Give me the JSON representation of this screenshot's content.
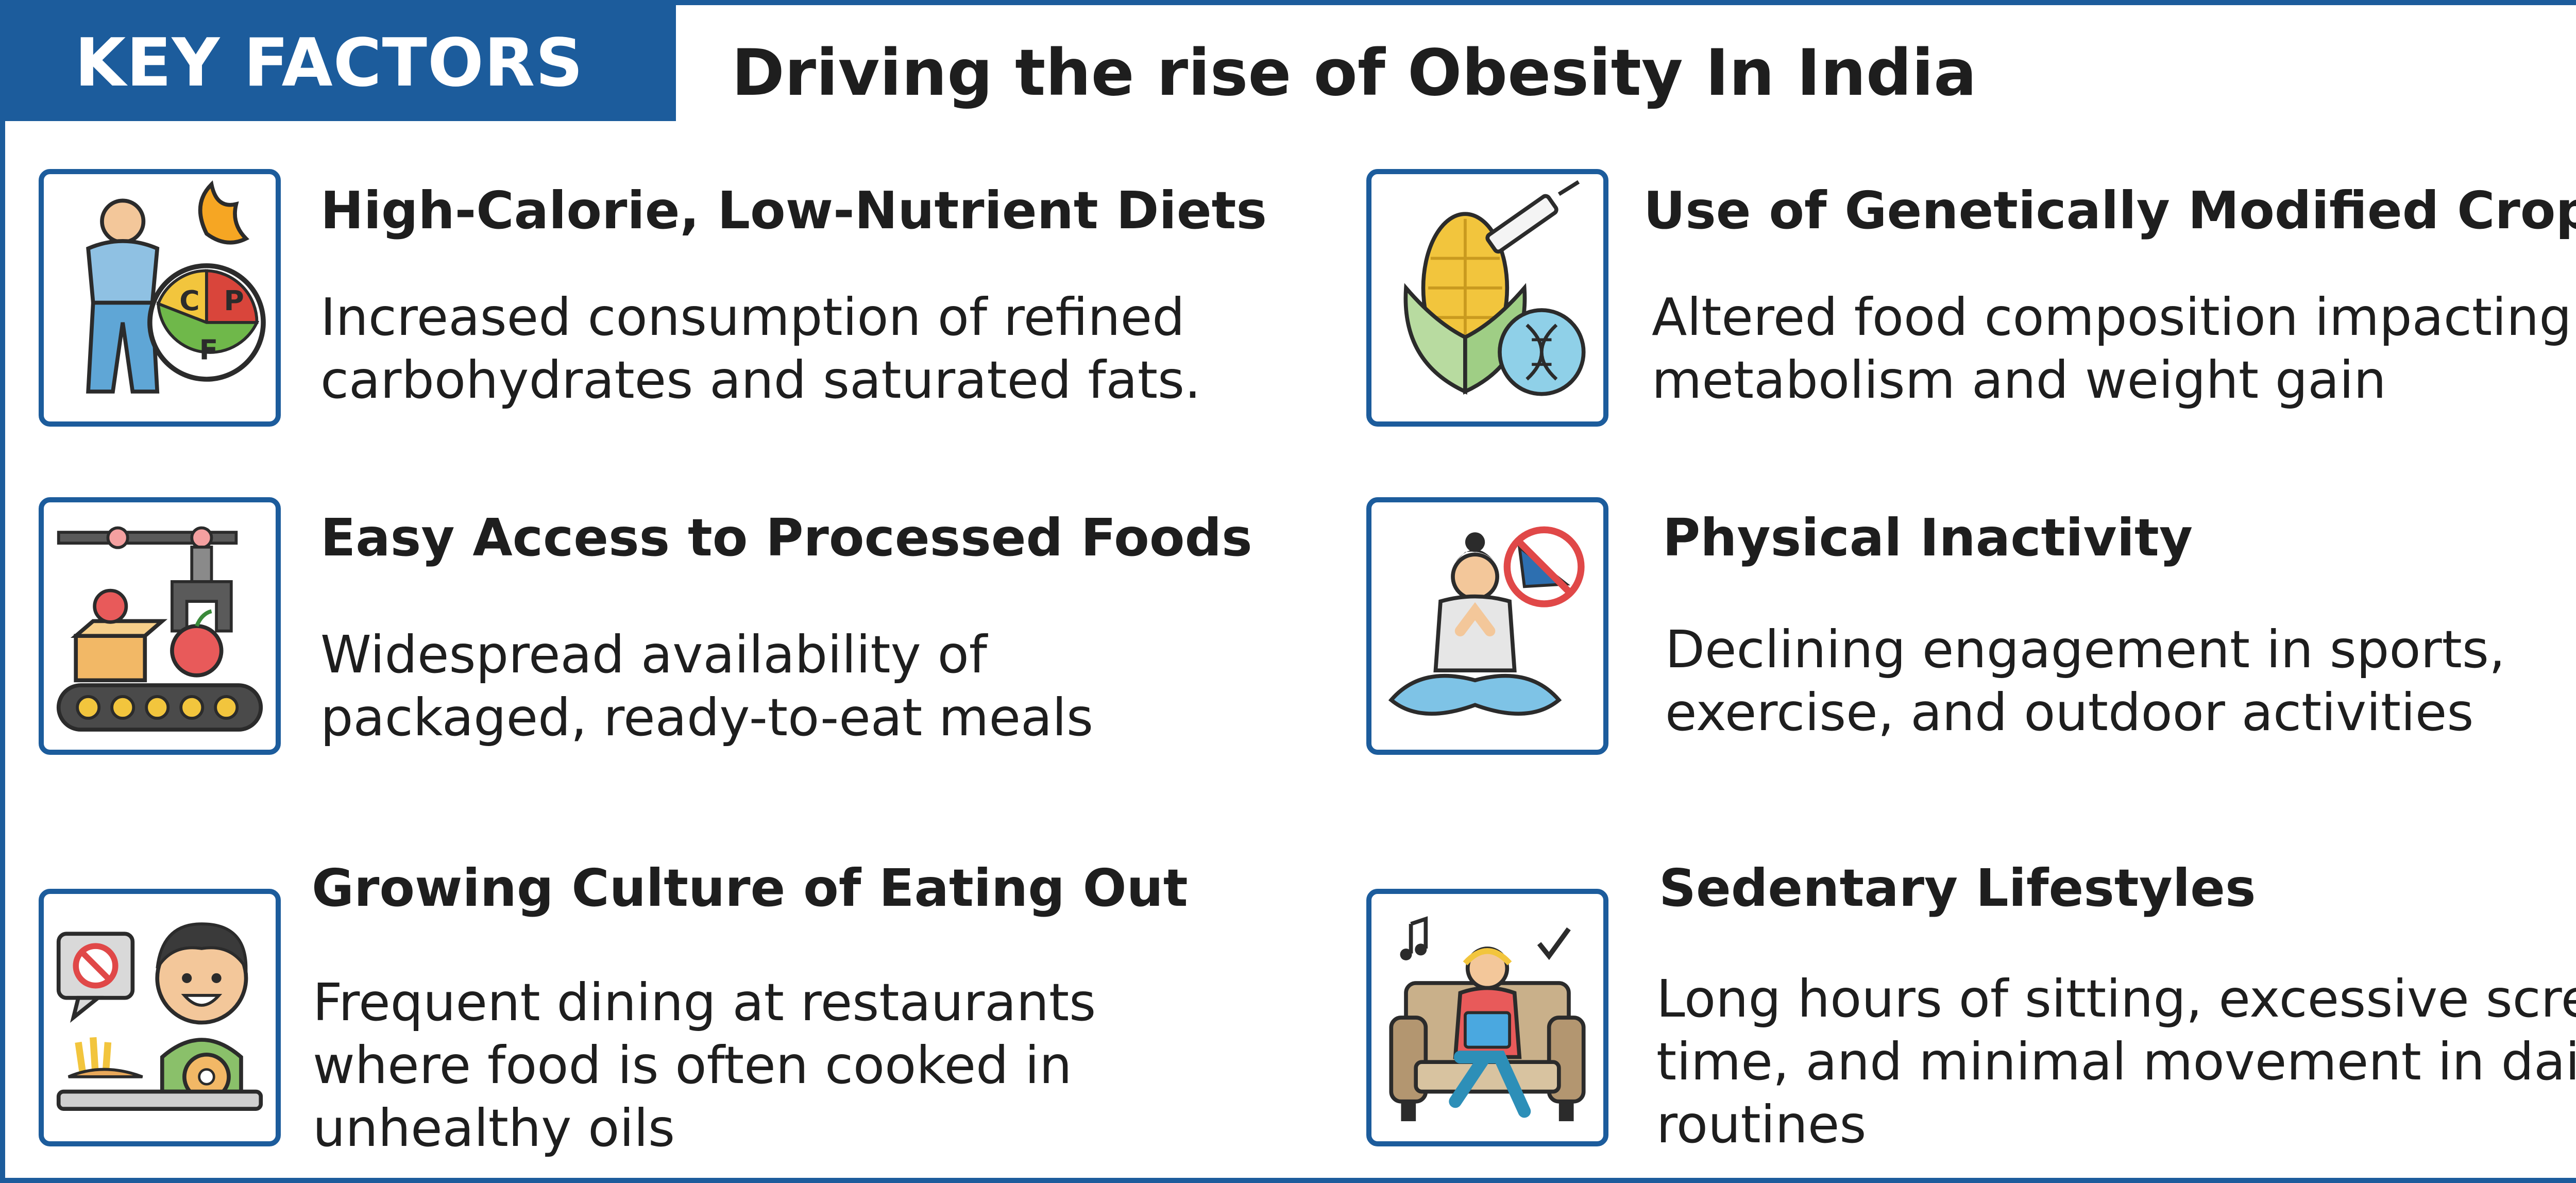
{
  "header": {
    "tag": "KEY FACTORS",
    "title": "Driving the rise of Obesity In India"
  },
  "colors": {
    "brand": "#1c5c9c",
    "text": "#1e1e1e",
    "icon_bg": "#ffffff"
  },
  "factors": [
    {
      "icon": "diet-macros-icon",
      "heading": "High-Calorie, Low-Nutrient Diets",
      "lines": [
        "Increased consumption of refined",
        "carbohydrates and saturated fats."
      ],
      "macros": {
        "c": "C",
        "p": "P",
        "f": "F"
      }
    },
    {
      "icon": "gm-corn-icon",
      "heading": "Use of Genetically Modified Crops",
      "lines": [
        "Altered food composition impacting",
        "metabolism and weight gain"
      ]
    },
    {
      "icon": "conveyor-belt-icon",
      "heading": "Easy Access to Processed Foods",
      "lines": [
        "Widespread availability of",
        "packaged, ready-to-eat meals"
      ]
    },
    {
      "icon": "sitting-person-no-exercise-icon",
      "heading": "Physical Inactivity",
      "lines": [
        "Declining engagement in sports,",
        "exercise, and outdoor activities"
      ]
    },
    {
      "icon": "eating-out-icon",
      "heading": "Growing Culture of Eating Out",
      "lines": [
        "Frequent dining at restaurants",
        "where food is often cooked in",
        "unhealthy oils"
      ]
    },
    {
      "icon": "sedentary-couch-icon",
      "heading": "Sedentary Lifestyles",
      "lines": [
        "Long hours of sitting, excessive screen",
        "time, and minimal movement in daily",
        "routines"
      ]
    }
  ]
}
